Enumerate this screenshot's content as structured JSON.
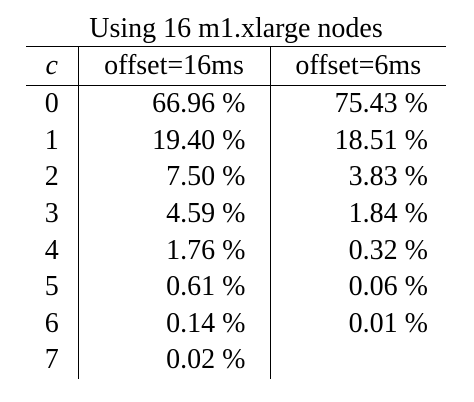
{
  "caption": "Using 16 m1.xlarge nodes",
  "headers": {
    "c": "c",
    "col1": "offset=16ms",
    "col2": "offset=6ms"
  },
  "rows": [
    {
      "c": "0",
      "v1": "66.96 %",
      "v2": "75.43 %"
    },
    {
      "c": "1",
      "v1": "19.40 %",
      "v2": "18.51 %"
    },
    {
      "c": "2",
      "v1": "7.50 %",
      "v2": "3.83 %"
    },
    {
      "c": "3",
      "v1": "4.59 %",
      "v2": "1.84 %"
    },
    {
      "c": "4",
      "v1": "1.76 %",
      "v2": "0.32 %"
    },
    {
      "c": "5",
      "v1": "0.61 %",
      "v2": "0.06 %"
    },
    {
      "c": "6",
      "v1": "0.14 %",
      "v2": "0.01 %"
    },
    {
      "c": "7",
      "v1": "0.02 %",
      "v2": ""
    }
  ]
}
